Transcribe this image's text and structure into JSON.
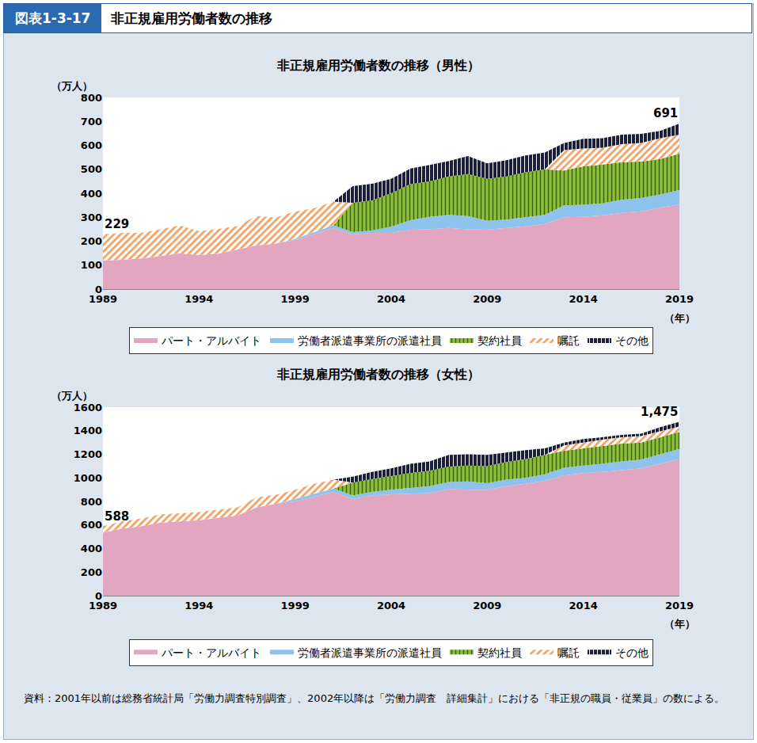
{
  "header": {
    "figure_no": "図表1-3-17",
    "title": "非正規雇用労働者数の推移"
  },
  "source": "資料：2001年以前は総務省統計局「労働力調査特別調査」、2002年以降は「労働力調査　詳細集計」における「非正規の職員・従業員」の数による。",
  "chart_data": [
    {
      "type": "area",
      "title": "非正規雇用労働者数の推移（男性）",
      "y_label": "（万人）",
      "x_label": "（年）",
      "stacked": true,
      "grid": false,
      "legend": "bottom",
      "x": [
        1989,
        1990,
        1991,
        1992,
        1993,
        1994,
        1995,
        1996,
        1997,
        1998,
        1999,
        2000,
        2001,
        2002,
        2003,
        2004,
        2005,
        2006,
        2007,
        2008,
        2009,
        2010,
        2011,
        2012,
        2013,
        2014,
        2015,
        2016,
        2017,
        2018,
        2019
      ],
      "xlim": [
        1989,
        2019
      ],
      "xticks": [
        1989,
        1994,
        1999,
        2004,
        2009,
        2014,
        2019
      ],
      "ylim": [
        0,
        800
      ],
      "yticks": [
        0,
        100,
        200,
        300,
        400,
        500,
        600,
        700,
        800
      ],
      "series": [
        {
          "name": "パート・アルバイト",
          "color": "#e2a6c0",
          "values": [
            120,
            122,
            128,
            138,
            150,
            142,
            148,
            165,
            183,
            190,
            205,
            230,
            255,
            228,
            235,
            235,
            248,
            250,
            255,
            250,
            248,
            255,
            262,
            272,
            300,
            302,
            308,
            318,
            325,
            340,
            353
          ]
        },
        {
          "name": "労働者派遣事業所の派遣社員",
          "color": "#8ec3ee",
          "values": [
            null,
            null,
            null,
            null,
            null,
            null,
            null,
            null,
            null,
            null,
            5,
            8,
            12,
            10,
            10,
            25,
            40,
            52,
            55,
            55,
            37,
            35,
            38,
            38,
            50,
            50,
            50,
            55,
            55,
            55,
            60
          ]
        },
        {
          "name": "契約社員",
          "color": "#8cbf3a",
          "values": [
            null,
            null,
            null,
            null,
            null,
            null,
            null,
            null,
            null,
            null,
            null,
            null,
            null,
            122,
            125,
            140,
            150,
            148,
            160,
            175,
            175,
            180,
            188,
            190,
            145,
            160,
            162,
            157,
            152,
            148,
            152
          ]
        },
        {
          "name": "嘱託",
          "color": "#f0a060",
          "values": [
            109,
            113,
            107,
            112,
            116,
            100,
            103,
            98,
            123,
            108,
            114,
            100,
            98,
            null,
            null,
            null,
            null,
            null,
            null,
            null,
            null,
            null,
            null,
            null,
            85,
            75,
            70,
            75,
            78,
            87,
            80
          ]
        },
        {
          "name": "その他",
          "color": "#1b1f3b",
          "values": [
            null,
            null,
            null,
            null,
            null,
            null,
            null,
            null,
            null,
            null,
            null,
            null,
            null,
            70,
            70,
            60,
            65,
            68,
            65,
            75,
            65,
            68,
            70,
            70,
            30,
            40,
            40,
            40,
            38,
            30,
            46
          ]
        }
      ],
      "annotations": [
        {
          "x": 1989,
          "y": 229,
          "text": "229"
        },
        {
          "x": 2019,
          "y": 691,
          "text": "691"
        }
      ]
    },
    {
      "type": "area",
      "title": "非正規雇用労働者数の推移（女性）",
      "y_label": "（万人）",
      "x_label": "（年）",
      "stacked": true,
      "grid": false,
      "legend": "bottom",
      "x": [
        1989,
        1990,
        1991,
        1992,
        1993,
        1994,
        1995,
        1996,
        1997,
        1998,
        1999,
        2000,
        2001,
        2002,
        2003,
        2004,
        2005,
        2006,
        2007,
        2008,
        2009,
        2010,
        2011,
        2012,
        2013,
        2014,
        2015,
        2016,
        2017,
        2018,
        2019
      ],
      "xlim": [
        1989,
        2019
      ],
      "xticks": [
        1989,
        1994,
        1999,
        2004,
        2009,
        2014,
        2019
      ],
      "ylim": [
        0,
        1600
      ],
      "yticks": [
        0,
        200,
        400,
        600,
        800,
        1000,
        1200,
        1400,
        1600
      ],
      "series": [
        {
          "name": "パート・アルバイト",
          "color": "#e2a6c0",
          "values": [
            535,
            570,
            590,
            620,
            630,
            640,
            660,
            680,
            750,
            780,
            800,
            840,
            880,
            820,
            850,
            860,
            865,
            870,
            905,
            900,
            900,
            930,
            950,
            975,
            1020,
            1040,
            1050,
            1065,
            1080,
            1120,
            1160
          ]
        },
        {
          "name": "労働者派遣事業所の派遣社員",
          "color": "#8ec3ee",
          "values": [
            null,
            null,
            null,
            null,
            null,
            null,
            null,
            null,
            null,
            null,
            20,
            25,
            30,
            30,
            30,
            40,
            50,
            60,
            60,
            70,
            55,
            55,
            50,
            55,
            65,
            65,
            70,
            75,
            75,
            80,
            85
          ]
        },
        {
          "name": "契約社員",
          "color": "#8cbf3a",
          "values": [
            null,
            null,
            null,
            null,
            null,
            null,
            null,
            null,
            null,
            null,
            null,
            null,
            null,
            110,
            110,
            115,
            125,
            130,
            130,
            135,
            145,
            150,
            160,
            165,
            145,
            145,
            150,
            150,
            145,
            145,
            145
          ]
        },
        {
          "name": "嘱託",
          "color": "#f0a060",
          "values": [
            53,
            60,
            65,
            70,
            70,
            70,
            70,
            70,
            85,
            75,
            80,
            85,
            75,
            null,
            null,
            null,
            null,
            null,
            null,
            null,
            null,
            null,
            null,
            null,
            45,
            50,
            55,
            55,
            55,
            50,
            45
          ]
        },
        {
          "name": "その他",
          "color": "#1b1f3b",
          "values": [
            null,
            null,
            null,
            null,
            null,
            null,
            null,
            null,
            null,
            null,
            null,
            null,
            null,
            50,
            60,
            65,
            80,
            80,
            100,
            95,
            95,
            80,
            75,
            55,
            25,
            30,
            20,
            20,
            20,
            35,
            40
          ]
        }
      ],
      "annotations": [
        {
          "x": 1989,
          "y": 588,
          "text": "588"
        },
        {
          "x": 2019,
          "y": 1475,
          "text": "1,475"
        }
      ]
    }
  ]
}
